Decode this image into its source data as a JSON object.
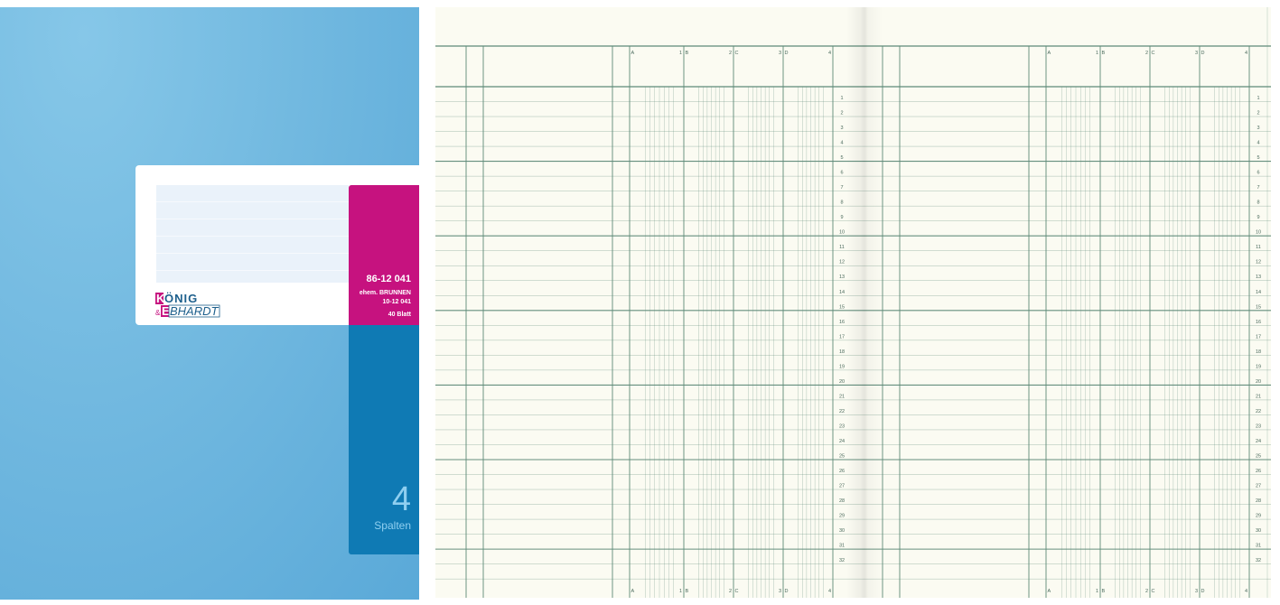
{
  "cover": {
    "brand": "KÖNIG & EBHARDT",
    "article_number": "86-12 041",
    "former_line1": "ehem. BRUNNEN",
    "former_line2": "10-12 041",
    "sheets": "40 Blatt",
    "columns_count": "4",
    "columns_word": "Spalten",
    "colors": {
      "cover": "#72b9e0",
      "magenta": "#c6127f",
      "blue": "#0f7ab4"
    }
  },
  "ledger": {
    "column_labels": [
      [
        "A",
        "1"
      ],
      [
        "B",
        "2"
      ],
      [
        "C",
        "3"
      ],
      [
        "D",
        "4"
      ]
    ],
    "rows": [
      "1",
      "2",
      "3",
      "4",
      "5",
      "6",
      "7",
      "8",
      "9",
      "10",
      "11",
      "12",
      "13",
      "14",
      "15",
      "16",
      "17",
      "18",
      "19",
      "20",
      "21",
      "22",
      "23",
      "24",
      "25",
      "26",
      "27",
      "28",
      "29",
      "30",
      "31",
      "32"
    ],
    "line_color": "#5e8a78"
  }
}
